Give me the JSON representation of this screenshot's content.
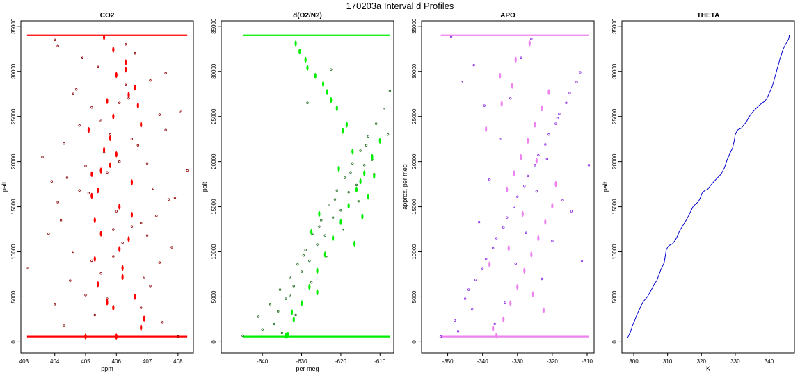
{
  "title": "170203a   Interval d Profiles",
  "chart_data": [
    {
      "type": "scatter",
      "title": "CO2",
      "xlabel": "ppm",
      "ylabel": "palt",
      "xlim": [
        402.9,
        408.5
      ],
      "ylim": [
        -1200,
        35600
      ],
      "xticks": [
        403,
        404,
        405,
        406,
        407,
        408
      ],
      "yticks": [
        0,
        5000,
        10000,
        15000,
        20000,
        25000,
        30000,
        35000
      ],
      "colors": {
        "raw": "#8b0000",
        "avg": "#ff0000"
      },
      "series": [
        {
          "name": "",
          "style": "raw",
          "x": [
            403.1,
            403.6,
            403.8,
            404.0,
            404.1,
            404.3,
            404.5,
            404.7,
            404.9,
            405.1,
            405.3,
            405.5,
            405.7,
            405.9,
            406.1,
            406.3,
            406.5,
            406.7,
            406.9,
            407.1,
            407.3,
            407.5,
            407.8,
            408.1,
            408.3,
            403.9,
            404.2,
            404.6,
            405.0,
            405.4,
            405.8,
            406.2,
            406.6,
            407.0,
            407.4,
            407.9,
            404.4,
            404.8,
            405.2,
            405.6,
            406.0,
            406.4,
            406.8,
            407.2,
            407.6,
            408.0,
            404.0,
            404.6,
            405.2,
            405.9,
            406.5,
            407.1,
            407.7,
            404.3,
            405.0,
            405.7,
            406.3,
            407.0,
            407.6,
            404.1,
            404.8,
            405.5,
            406.1,
            406.8,
            407.4
          ],
          "y": [
            8200,
            20500,
            12000,
            4200,
            15500,
            22000,
            6800,
            28000,
            31500,
            16500,
            3000,
            24500,
            18800,
            9500,
            26500,
            33000,
            12800,
            21800,
            7200,
            29000,
            14000,
            2200,
            10500,
            25500,
            19000,
            17800,
            13500,
            27500,
            5200,
            30500,
            23000,
            11000,
            32000,
            19800,
            8800,
            16000,
            18200,
            24000,
            9000,
            21000,
            14500,
            27000,
            3800,
            17000,
            29800,
            600,
            33500,
            10000,
            26000,
            12500,
            22500,
            6200,
            15800,
            1800,
            19500,
            4800,
            28500,
            11800,
            23500,
            32800,
            16800,
            7600,
            20000,
            13200,
            25200
          ]
        },
        {
          "name": "",
          "style": "avg",
          "x": [
            405.0,
            405.1,
            405.2,
            405.3,
            405.4,
            405.5,
            405.6,
            405.7,
            405.8,
            405.9,
            406.0,
            406.1,
            406.2,
            406.3,
            406.4,
            406.5,
            406.6,
            406.7,
            406.8,
            406.9,
            405.3,
            405.9,
            406.4,
            406.0,
            405.6,
            406.2,
            406.6,
            405.4,
            406.1,
            405.8,
            406.3,
            405.7,
            406.5,
            405.2,
            405.9,
            406.8,
            405.5,
            406.0
          ],
          "y": [
            600,
            23500,
            18600,
            9200,
            16800,
            12000,
            21300,
            26700,
            19600,
            32400,
            29600,
            15000,
            8200,
            31000,
            27400,
            17700,
            5000,
            26200,
            24100,
            2600,
            13500,
            3800,
            11400,
            20800,
            33800,
            7200,
            28200,
            6400,
            10300,
            22600,
            30200,
            4400,
            14100,
            16200,
            25000,
            1600,
            19000,
            600
          ]
        }
      ]
    },
    {
      "type": "scatter",
      "title": "d(O2/N2)",
      "xlabel": "per meg",
      "ylabel": "palt",
      "xlim": [
        -650.5,
        -606.5
      ],
      "ylim": [
        -1200,
        35600
      ],
      "xticks": [
        -640,
        -630,
        -620,
        -610
      ],
      "yticks": [
        0,
        5000,
        10000,
        15000,
        20000,
        25000,
        30000,
        35000
      ],
      "colors": {
        "raw": "#1a6b1a",
        "avg": "#00ee00"
      },
      "series": [
        {
          "name": "",
          "style": "raw",
          "x": [
            -645.0,
            -641.0,
            -638.0,
            -635.5,
            -633.0,
            -631.0,
            -629.0,
            -627.0,
            -625.0,
            -623.0,
            -621.0,
            -619.0,
            -617.0,
            -615.0,
            -613.0,
            -611.0,
            -609.0,
            -607.5,
            -640.0,
            -636.0,
            -632.0,
            -628.0,
            -624.0,
            -620.0,
            -616.0,
            -612.0,
            -608.0,
            -634.0,
            -630.0,
            -626.0,
            -622.0,
            -618.0,
            -614.0,
            -610.0,
            -637.0,
            -633.0,
            -629.5,
            -625.5,
            -621.5,
            -617.5,
            -613.5,
            -631.5,
            -627.5,
            -623.5,
            -619.5,
            -615.5,
            -611.5,
            -635.0,
            -628.5,
            -622.5
          ],
          "y": [
            700,
            2800,
            4200,
            5800,
            7200,
            8600,
            10200,
            12000,
            13500,
            15200,
            16800,
            18200,
            19800,
            21200,
            22800,
            24200,
            25800,
            27800,
            1400,
            3400,
            6200,
            9000,
            11800,
            14600,
            17400,
            20200,
            23000,
            4800,
            7800,
            10800,
            13800,
            16600,
            19600,
            22400,
            2000,
            5200,
            9600,
            12800,
            15800,
            18800,
            21800,
            3000,
            6600,
            9400,
            12400,
            15600,
            18600,
            1000,
            26500,
            30200
          ]
        },
        {
          "name": "",
          "style": "avg",
          "x": [
            -634.0,
            -632.0,
            -630.0,
            -628.0,
            -626.0,
            -624.0,
            -622.0,
            -620.0,
            -618.0,
            -616.0,
            -614.0,
            -612.0,
            -610.0,
            -618.5,
            -621.0,
            -623.5,
            -626.5,
            -629.0,
            -631.5,
            -625.5,
            -627.5,
            -620.5,
            -617.0,
            -615.0,
            -613.0,
            -611.5,
            -619.5,
            -622.5,
            -624.5,
            -628.5,
            -630.5,
            -633.5,
            -632.5,
            -616.5,
            -614.5,
            -626.0
          ],
          "y": [
            700,
            2500,
            4300,
            6100,
            7900,
            9700,
            11500,
            13300,
            15100,
            16900,
            18700,
            20500,
            22300,
            24100,
            25900,
            27700,
            29500,
            31300,
            33100,
            14200,
            12200,
            19200,
            21100,
            17800,
            16100,
            18400,
            23400,
            26800,
            28600,
            30400,
            32200,
            800,
            3300,
            10900,
            13900,
            5500
          ]
        }
      ]
    },
    {
      "type": "scatter",
      "title": "APO",
      "xlabel": "",
      "ylabel": "approx. per meg",
      "xlim": [
        -357.5,
        -308
      ],
      "ylim": [
        -1200,
        35600
      ],
      "xticks": [
        -350,
        -340,
        -330,
        -320,
        -310
      ],
      "yticks": [
        0,
        5000,
        10000,
        15000,
        20000,
        25000,
        30000,
        35000
      ],
      "colors": {
        "raw": "#8a2be2",
        "avg": "#ee82ee"
      },
      "series": [
        {
          "name": "",
          "style": "raw",
          "x": [
            -352.0,
            -348.0,
            -345.0,
            -342.0,
            -339.0,
            -336.0,
            -333.0,
            -330.0,
            -327.0,
            -324.0,
            -321.0,
            -318.0,
            -315.0,
            -312.0,
            -309.5,
            -347.0,
            -343.0,
            -340.0,
            -337.0,
            -334.0,
            -331.0,
            -328.0,
            -325.0,
            -322.0,
            -319.0,
            -316.0,
            -313.0,
            -344.0,
            -341.0,
            -338.0,
            -335.0,
            -332.0,
            -329.0,
            -326.0,
            -323.0,
            -320.0,
            -317.0,
            -346.0,
            -336.5,
            -333.5,
            -330.5,
            -327.5,
            -324.5,
            -321.5,
            -318.5,
            -339.5,
            -342.5,
            -314.5,
            -311.5,
            -349.0
          ],
          "y": [
            600,
            2400,
            4800,
            6900,
            9200,
            11500,
            13800,
            16100,
            18400,
            20700,
            23000,
            25300,
            27600,
            29900,
            19600,
            1200,
            3600,
            8100,
            10400,
            12700,
            15000,
            17300,
            19600,
            21900,
            24200,
            26500,
            28800,
            5800,
            13300,
            18000,
            22500,
            27000,
            31500,
            33600,
            7000,
            11200,
            15700,
            28800,
            2000,
            4400,
            8700,
            12100,
            16700,
            20300,
            24800,
            26200,
            30700,
            14500,
            9000,
            33800
          ]
        },
        {
          "name": "",
          "style": "avg",
          "x": [
            -336.0,
            -334.0,
            -332.0,
            -330.0,
            -328.0,
            -326.0,
            -324.0,
            -322.0,
            -320.0,
            -333.0,
            -331.0,
            -329.0,
            -327.0,
            -325.0,
            -323.0,
            -321.0,
            -335.0,
            -330.5,
            -326.5,
            -322.5,
            -319.0,
            -332.5,
            -328.5,
            -324.5,
            -334.5,
            -338.0,
            -337.0,
            -339.0,
            -325.5,
            -331.5
          ],
          "y": [
            700,
            2500,
            4300,
            6100,
            7900,
            9700,
            11500,
            13300,
            15100,
            16900,
            18700,
            20500,
            22300,
            24100,
            25900,
            27700,
            29500,
            31300,
            33100,
            3500,
            17500,
            10400,
            14200,
            20100,
            26400,
            8600,
            1500,
            23600,
            5300,
            28400
          ]
        }
      ]
    },
    {
      "type": "line",
      "title": "THETA",
      "xlabel": "K",
      "ylabel": "palt",
      "xlim": [
        296.5,
        347.5
      ],
      "ylim": [
        -1200,
        35600
      ],
      "xticks": [
        300,
        310,
        320,
        330,
        340
      ],
      "yticks": [
        0,
        5000,
        10000,
        15000,
        20000,
        25000,
        30000,
        35000
      ],
      "colors": {
        "line": "#0000cc"
      },
      "series": [
        {
          "name": "",
          "x": [
            298.2,
            298.5,
            299.0,
            299.6,
            300.3,
            301.0,
            301.8,
            302.5,
            303.3,
            304.0,
            304.8,
            305.5,
            306.2,
            306.8,
            307.3,
            307.7,
            308.0,
            308.5,
            309.0,
            309.3,
            309.6,
            310.0,
            310.5,
            311.5,
            312.3,
            313.0,
            313.5,
            314.5,
            315.5,
            316.2,
            317.0,
            317.5,
            318.3,
            319.0,
            319.6,
            320.2,
            321.0,
            321.8,
            322.6,
            323.5,
            324.5,
            325.8,
            326.8,
            327.6,
            328.3,
            329.2,
            329.7,
            330.0,
            330.4,
            330.7,
            331.2,
            331.8,
            332.6,
            333.3,
            334.0,
            334.7,
            335.4,
            336.2,
            337.0,
            338.0,
            338.8,
            339.5,
            340.2,
            341.0,
            341.6,
            342.2,
            342.8,
            343.3,
            343.7,
            344.1,
            344.6,
            345.2,
            345.8,
            346.0
          ],
          "y": [
            500,
            700,
            1100,
            1800,
            2400,
            3100,
            3700,
            4300,
            4700,
            5000,
            5500,
            6000,
            6500,
            6800,
            7300,
            7700,
            8000,
            8400,
            8800,
            9500,
            10200,
            10500,
            10700,
            10900,
            11300,
            11800,
            12300,
            12900,
            13500,
            14000,
            14600,
            15000,
            15300,
            15500,
            15900,
            16500,
            16800,
            16900,
            17300,
            17700,
            18100,
            18600,
            19300,
            20200,
            20800,
            21500,
            22300,
            23000,
            23300,
            23500,
            23600,
            23700,
            24100,
            24400,
            24900,
            25300,
            25600,
            25900,
            26200,
            26500,
            26700,
            27100,
            27700,
            28400,
            29200,
            30000,
            30800,
            31500,
            31900,
            32400,
            32800,
            33200,
            33600,
            34000
          ]
        }
      ]
    }
  ]
}
